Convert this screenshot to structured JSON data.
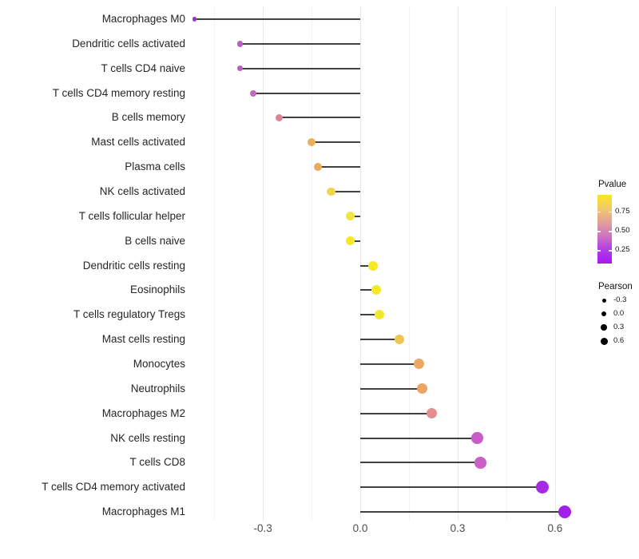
{
  "chart_data": {
    "type": "scatter",
    "variant": "lollipop (horizontal dot-and-stem plot)",
    "title": "",
    "xlabel": "",
    "ylabel": "",
    "orientation": "horizontal",
    "baseline": 0.0,
    "xlim": [
      -0.57,
      0.68
    ],
    "grid": "vertical gridlines only, light gray, no axis lines or tick marks",
    "x_axis": {
      "major_ticks": [
        {
          "value": -0.3,
          "label": "-0.3"
        },
        {
          "value": 0.0,
          "label": "0.0"
        },
        {
          "value": 0.3,
          "label": "0.3"
        },
        {
          "value": 0.6,
          "label": "0.6"
        }
      ],
      "minor_gridlines": [
        -0.45,
        -0.15,
        0.15,
        0.45
      ]
    },
    "points": [
      {
        "label": "Macrophages M0",
        "pearson": -0.51,
        "pvalue_est": 0.02,
        "color": "#9b32c8"
      },
      {
        "label": "Dendritic cells activated",
        "pearson": -0.37,
        "pvalue_est": 0.1,
        "color": "#ba5ec6"
      },
      {
        "label": "T cells CD4 naive",
        "pearson": -0.37,
        "pvalue_est": 0.1,
        "color": "#ba5ec6"
      },
      {
        "label": "T cells CD4 memory resting",
        "pearson": -0.33,
        "pvalue_est": 0.13,
        "color": "#c369c0"
      },
      {
        "label": "B cells memory",
        "pearson": -0.25,
        "pvalue_est": 0.38,
        "color": "#dd8392"
      },
      {
        "label": "Mast cells activated",
        "pearson": -0.15,
        "pvalue_est": 0.61,
        "color": "#ebb057"
      },
      {
        "label": "Plasma cells",
        "pearson": -0.13,
        "pvalue_est": 0.63,
        "color": "#ebab5e"
      },
      {
        "label": "NK cells activated",
        "pearson": -0.09,
        "pvalue_est": 0.73,
        "color": "#f0d54b"
      },
      {
        "label": "T cells follicular helper",
        "pearson": -0.03,
        "pvalue_est": 0.82,
        "color": "#f3e63a"
      },
      {
        "label": "B cells naive",
        "pearson": -0.03,
        "pvalue_est": 0.88,
        "color": "#f5e926"
      },
      {
        "label": "Dendritic cells resting",
        "pearson": 0.04,
        "pvalue_est": 0.9,
        "color": "#f5e926"
      },
      {
        "label": "Eosinophils",
        "pearson": 0.05,
        "pvalue_est": 0.9,
        "color": "#f5e926"
      },
      {
        "label": "T cells regulatory  Tregs",
        "pearson": 0.06,
        "pvalue_est": 0.85,
        "color": "#f4e72f"
      },
      {
        "label": "Mast cells resting",
        "pearson": 0.12,
        "pvalue_est": 0.68,
        "color": "#eec453"
      },
      {
        "label": "Monocytes",
        "pearson": 0.18,
        "pvalue_est": 0.58,
        "color": "#eca766"
      },
      {
        "label": "Neutrophils",
        "pearson": 0.19,
        "pvalue_est": 0.57,
        "color": "#eca463"
      },
      {
        "label": "Macrophages M2",
        "pearson": 0.22,
        "pvalue_est": 0.44,
        "color": "#e28f8e"
      },
      {
        "label": "NK cells resting",
        "pearson": 0.36,
        "pvalue_est": 0.17,
        "color": "#c75bc8"
      },
      {
        "label": "T cells CD8",
        "pearson": 0.37,
        "pvalue_est": 0.18,
        "color": "#c960c6"
      },
      {
        "label": "T cells CD4 memory activated",
        "pearson": 0.56,
        "pvalue_est": 0.06,
        "color": "#a62ae2"
      },
      {
        "label": "Macrophages M1",
        "pearson": 0.63,
        "pvalue_est": 0.04,
        "color": "#a21fe9"
      }
    ]
  },
  "legends": {
    "pvalue": {
      "title": "Pvalue",
      "position": "right",
      "ticks": [
        {
          "value": 0.75,
          "label": "0.75"
        },
        {
          "value": 0.5,
          "label": "0.50"
        },
        {
          "value": 0.25,
          "label": "0.25"
        }
      ],
      "range_est": [
        0.08,
        0.96
      ],
      "gradient_stops_top_to_bottom": [
        "#f9e721",
        "#f2c96a",
        "#e2a09c",
        "#cf72c0",
        "#b13ce6",
        "#a819f2"
      ]
    },
    "pearson": {
      "title": "Pearson",
      "position": "right",
      "dot_color": "#000000",
      "items": [
        {
          "value": -0.3,
          "label": "-0.3"
        },
        {
          "value": 0.0,
          "label": "0.0"
        },
        {
          "value": 0.3,
          "label": "0.3"
        },
        {
          "value": 0.6,
          "label": "0.6"
        }
      ]
    }
  },
  "colors": {
    "background": "#ffffff",
    "stem": "#404040",
    "grid_major": "#e7e7e7",
    "grid_minor": "#f3f3f3",
    "axis_text": "#4d4d4d",
    "category_text": "#262626"
  }
}
